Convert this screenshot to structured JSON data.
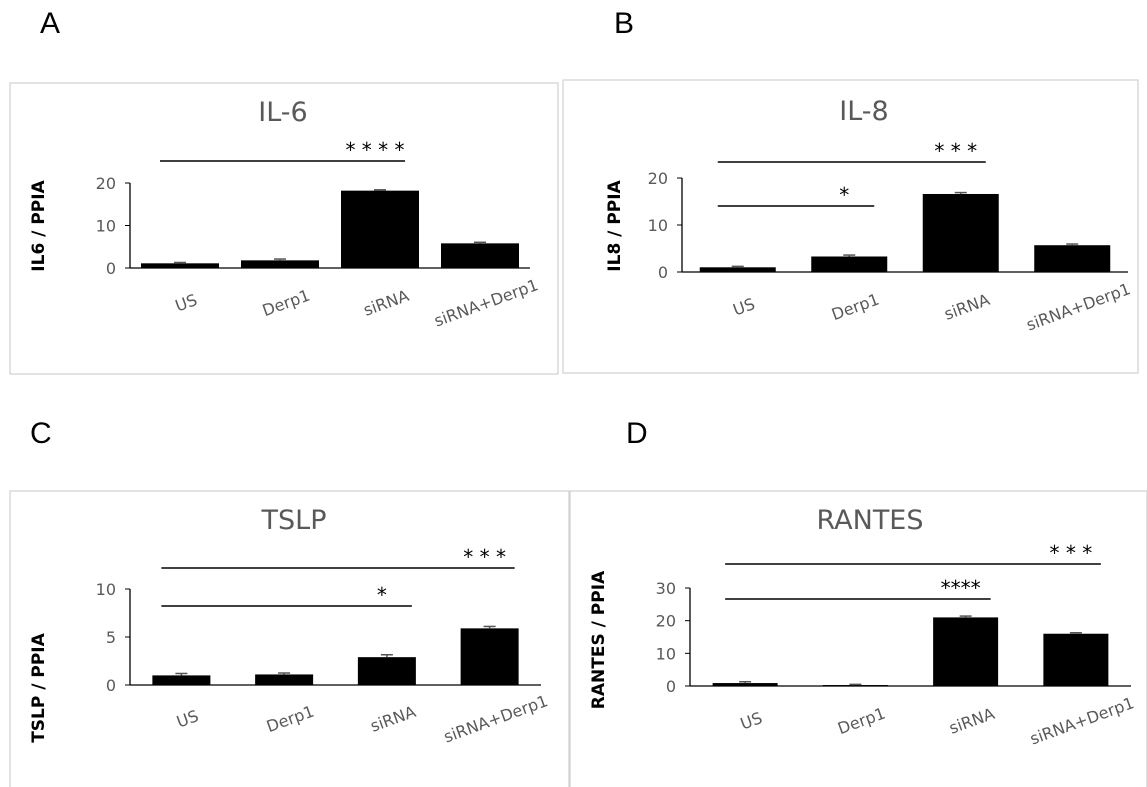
{
  "panels": [
    "A",
    "B",
    "C",
    "D"
  ],
  "chart_data": [
    {
      "type": "bar",
      "panel": "A",
      "title": "IL-6",
      "ylabel": "IL6 / PPIA",
      "categories": [
        "US",
        "Derp1",
        "siRNA",
        "siRNA+Derp1"
      ],
      "values": [
        1.1,
        1.8,
        18.2,
        5.8
      ],
      "errors": [
        0.2,
        0.3,
        0.2,
        0.25
      ],
      "ylim": [
        0,
        20
      ],
      "yticks": [
        0,
        10,
        20
      ],
      "bar_color": "#000000",
      "significance": [
        {
          "from": "US",
          "to": "siRNA",
          "label": "* * * *"
        }
      ]
    },
    {
      "type": "bar",
      "panel": "B",
      "title": "IL-8",
      "ylabel": "IL8 / PPIA",
      "categories": [
        "US",
        "Derp1",
        "siRNA",
        "siRNA+Derp1"
      ],
      "values": [
        1.0,
        3.3,
        16.6,
        5.7
      ],
      "errors": [
        0.2,
        0.3,
        0.3,
        0.25
      ],
      "ylim": [
        0,
        20
      ],
      "yticks": [
        0,
        10,
        20
      ],
      "bar_color": "#000000",
      "significance": [
        {
          "from": "US",
          "to": "siRNA",
          "label": "* * *"
        },
        {
          "from": "US",
          "to": "Derp1",
          "label": "*"
        }
      ]
    },
    {
      "type": "bar",
      "panel": "C",
      "title": "TSLP",
      "ylabel": "TSLP / PPIA",
      "categories": [
        "US",
        "Derp1",
        "siRNA",
        "siRNA+Derp1"
      ],
      "values": [
        1.0,
        1.1,
        2.9,
        5.9
      ],
      "errors": [
        0.2,
        0.15,
        0.25,
        0.2
      ],
      "ylim": [
        0,
        10
      ],
      "yticks": [
        0,
        5,
        10
      ],
      "bar_color": "#000000",
      "significance": [
        {
          "from": "US",
          "to": "siRNA+Derp1",
          "label": "* * *"
        },
        {
          "from": "US",
          "to": "siRNA",
          "label": "*"
        }
      ]
    },
    {
      "type": "bar",
      "panel": "D",
      "title": "RANTES",
      "ylabel": "RANTES / PPIA",
      "categories": [
        "US",
        "Derp1",
        "siRNA",
        "siRNA+Derp1"
      ],
      "values": [
        0.9,
        0.3,
        21.0,
        16.0
      ],
      "errors": [
        0.4,
        0.2,
        0.4,
        0.3
      ],
      "ylim": [
        0,
        30
      ],
      "yticks": [
        0,
        10,
        20,
        30
      ],
      "bar_color": "#000000",
      "significance": [
        {
          "from": "US",
          "to": "siRNA+Derp1",
          "label": "* * *"
        },
        {
          "from": "US",
          "to": "siRNA",
          "label": "****"
        }
      ]
    }
  ]
}
